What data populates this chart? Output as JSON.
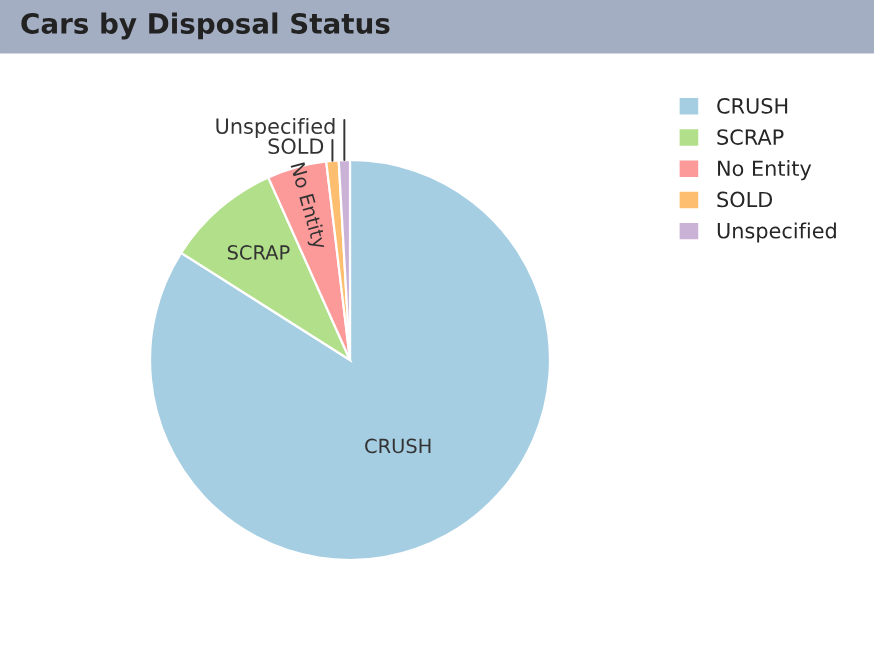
{
  "chart_data": {
    "type": "pie",
    "title": "Cars by Disposal Status",
    "categories": [
      "CRUSH",
      "SCRAP",
      "No Entity",
      "SOLD",
      "Unspecified"
    ],
    "values": [
      84,
      9.3,
      4.8,
      1,
      0.9
    ],
    "colors": [
      "#a6cee3",
      "#b2df8a",
      "#fb9a99",
      "#fdbf6f",
      "#cab2d6"
    ],
    "legend": "top right"
  }
}
